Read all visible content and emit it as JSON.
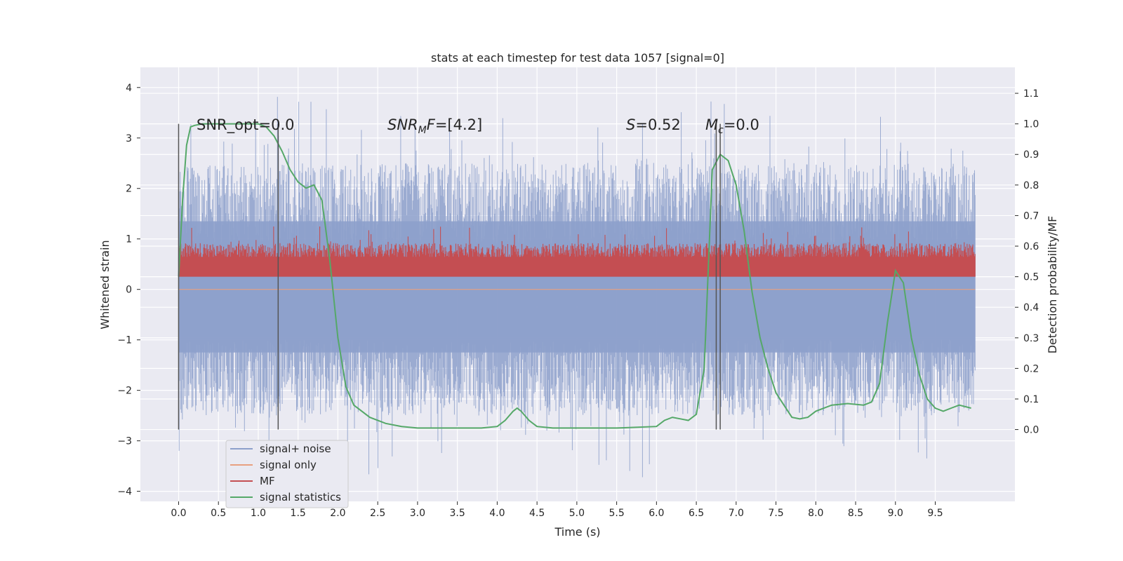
{
  "chart_data": {
    "type": "line",
    "title": "stats at each timestep for test data 1057 [signal=0]",
    "xlabel": "Time (s)",
    "ylabel": "Whitened strain",
    "y2label": "Detection probability/MF",
    "xlim": [
      -0.48,
      10.5
    ],
    "ylim": [
      -4.2,
      4.4
    ],
    "y2lim": [
      -0.235,
      1.185
    ],
    "xticks": [
      "0.0",
      "0.5",
      "1.0",
      "1.5",
      "2.0",
      "2.5",
      "3.0",
      "3.5",
      "4.0",
      "4.5",
      "5.0",
      "5.5",
      "6.0",
      "6.5",
      "7.0",
      "7.5",
      "8.0",
      "8.5",
      "9.0",
      "9.5"
    ],
    "yticks": [
      "−4",
      "−3",
      "−2",
      "−1",
      "0",
      "1",
      "2",
      "3",
      "4"
    ],
    "y2ticks": [
      "0.0",
      "0.1",
      "0.2",
      "0.3",
      "0.4",
      "0.5",
      "0.6",
      "0.7",
      "0.8",
      "0.9",
      "1.0",
      "1.1"
    ],
    "grid": true,
    "legend_position": "lower-left",
    "annotations": [
      {
        "text": "SNR_opt=0.0",
        "x": 0.2
      },
      {
        "text": "SNR_MF=[4.2]",
        "x": 2.6
      },
      {
        "text": "S=0.52",
        "x": 5.6
      },
      {
        "text": "M_c=0.0",
        "x": 6.6
      }
    ],
    "vertical_markers": [
      0.0,
      1.25,
      6.75,
      6.8
    ],
    "series": [
      {
        "name": "signal+ noise",
        "axis": "left",
        "color": "#8da0cb",
        "description_range": [
          -3.9,
          4.0
        ],
        "x_range": [
          0.0,
          10.0
        ]
      },
      {
        "name": "signal only",
        "axis": "left",
        "color": "#e8a080",
        "values_all": 0
      },
      {
        "name": "MF",
        "axis": "right",
        "color": "#c44e52",
        "x_range": [
          0.0,
          10.0
        ],
        "approx_range": [
          0.5,
          0.62
        ]
      },
      {
        "name": "signal statistics",
        "axis": "right",
        "color": "#55a868",
        "x": [
          0.0,
          0.05,
          0.1,
          0.15,
          0.2,
          0.3,
          0.5,
          0.7,
          0.9,
          1.0,
          1.1,
          1.2,
          1.3,
          1.4,
          1.5,
          1.6,
          1.7,
          1.8,
          1.9,
          2.0,
          2.1,
          2.2,
          2.4,
          2.6,
          2.8,
          3.0,
          3.2,
          3.5,
          3.8,
          4.0,
          4.1,
          4.2,
          4.25,
          4.3,
          4.4,
          4.5,
          4.7,
          5.0,
          5.5,
          6.0,
          6.1,
          6.2,
          6.3,
          6.4,
          6.5,
          6.6,
          6.7,
          6.8,
          6.9,
          7.0,
          7.1,
          7.2,
          7.3,
          7.4,
          7.5,
          7.6,
          7.7,
          7.8,
          7.9,
          8.0,
          8.2,
          8.4,
          8.6,
          8.7,
          8.8,
          8.9,
          9.0,
          9.1,
          9.2,
          9.3,
          9.4,
          9.5,
          9.6,
          9.7,
          9.8,
          9.95
        ],
        "y": [
          0.5,
          0.75,
          0.93,
          0.99,
          0.995,
          1.0,
          1.0,
          1.0,
          1.0,
          1.0,
          0.99,
          0.96,
          0.91,
          0.85,
          0.81,
          0.79,
          0.8,
          0.75,
          0.55,
          0.3,
          0.14,
          0.08,
          0.04,
          0.02,
          0.01,
          0.005,
          0.005,
          0.005,
          0.005,
          0.01,
          0.03,
          0.06,
          0.07,
          0.06,
          0.03,
          0.01,
          0.005,
          0.005,
          0.005,
          0.01,
          0.03,
          0.04,
          0.035,
          0.03,
          0.05,
          0.2,
          0.85,
          0.9,
          0.88,
          0.8,
          0.65,
          0.45,
          0.3,
          0.2,
          0.12,
          0.08,
          0.04,
          0.035,
          0.04,
          0.06,
          0.08,
          0.085,
          0.08,
          0.09,
          0.15,
          0.35,
          0.52,
          0.48,
          0.3,
          0.18,
          0.1,
          0.07,
          0.06,
          0.07,
          0.08,
          0.07
        ]
      }
    ]
  }
}
